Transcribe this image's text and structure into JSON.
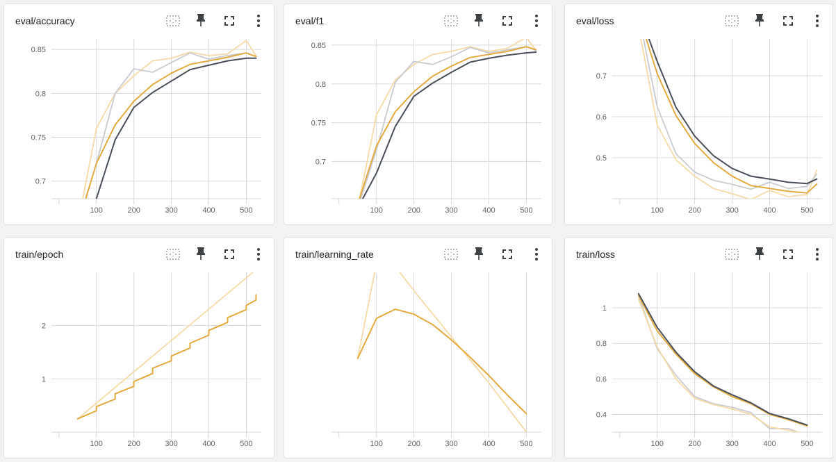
{
  "toolbar_icons": [
    "fit-data-icon",
    "pin-icon",
    "fullscreen-icon",
    "more-vert-icon"
  ],
  "colors": {
    "dark": "#474e5a",
    "orange": "#e5aa3f",
    "light_orange": "#f6dba6",
    "light_grey": "#c9cbd1",
    "grid": "#d9d9d9",
    "tick": "#5f6368"
  },
  "charts": [
    {
      "title": "eval/accuracy",
      "chart_data": {
        "type": "line",
        "xlim": [
          -20,
          540
        ],
        "ylim": [
          0.68,
          0.862
        ],
        "xticks": [
          100,
          200,
          300,
          400,
          500
        ],
        "yticks": [
          {
            "v": 0.7,
            "label": "0.7"
          },
          {
            "v": 0.75,
            "label": "0.75"
          },
          {
            "v": 0.8,
            "label": "0.8"
          },
          {
            "v": 0.85,
            "label": "0.85"
          }
        ],
        "grid": true,
        "series": [
          {
            "color": "light_orange",
            "width": 1.8,
            "x": [
              50,
              100,
              150,
              200,
              250,
              300,
              350,
              400,
              450,
              500,
              526
            ],
            "y": [
              0.65,
              0.76,
              0.8,
              0.82,
              0.837,
              0.84,
              0.847,
              0.843,
              0.845,
              0.86,
              0.843
            ]
          },
          {
            "color": "light_grey",
            "width": 1.8,
            "x": [
              50,
              100,
              150,
              200,
              250,
              300,
              350,
              400,
              450,
              500,
              526
            ],
            "y": [
              0.65,
              0.72,
              0.8,
              0.828,
              0.824,
              0.835,
              0.846,
              0.839,
              0.843,
              0.846,
              0.842
            ]
          },
          {
            "color": "orange",
            "width": 2.0,
            "x": [
              50,
              100,
              150,
              200,
              250,
              300,
              350,
              400,
              450,
              500,
              526
            ],
            "y": [
              0.65,
              0.72,
              0.764,
              0.791,
              0.81,
              0.823,
              0.833,
              0.837,
              0.841,
              0.846,
              0.842
            ]
          },
          {
            "color": "dark",
            "width": 2.0,
            "x": [
              50,
              100,
              150,
              200,
              250,
              300,
              350,
              400,
              450,
              500,
              526
            ],
            "y": [
              0.64,
              0.68,
              0.747,
              0.784,
              0.801,
              0.814,
              0.827,
              0.832,
              0.837,
              0.84,
              0.84
            ]
          }
        ]
      }
    },
    {
      "title": "eval/f1",
      "chart_data": {
        "type": "line",
        "xlim": [
          -20,
          540
        ],
        "ylim": [
          0.652,
          0.858
        ],
        "xticks": [
          100,
          200,
          300,
          400,
          500
        ],
        "yticks": [
          {
            "v": 0.7,
            "label": "0.7"
          },
          {
            "v": 0.75,
            "label": "0.75"
          },
          {
            "v": 0.8,
            "label": "0.8"
          },
          {
            "v": 0.85,
            "label": "0.85"
          }
        ],
        "grid": true,
        "series": [
          {
            "color": "light_orange",
            "width": 1.8,
            "x": [
              50,
              100,
              150,
              200,
              250,
              300,
              350,
              400,
              450,
              500,
              526
            ],
            "y": [
              0.64,
              0.76,
              0.805,
              0.825,
              0.838,
              0.842,
              0.848,
              0.842,
              0.846,
              0.86,
              0.843
            ]
          },
          {
            "color": "light_grey",
            "width": 1.8,
            "x": [
              50,
              100,
              150,
              200,
              250,
              300,
              350,
              400,
              450,
              500,
              526
            ],
            "y": [
              0.64,
              0.715,
              0.802,
              0.829,
              0.825,
              0.835,
              0.847,
              0.84,
              0.844,
              0.848,
              0.843
            ]
          },
          {
            "color": "orange",
            "width": 2.0,
            "x": [
              50,
              100,
              150,
              200,
              250,
              300,
              350,
              400,
              450,
              500,
              526
            ],
            "y": [
              0.645,
              0.72,
              0.764,
              0.79,
              0.81,
              0.823,
              0.834,
              0.838,
              0.842,
              0.848,
              0.844
            ]
          },
          {
            "color": "dark",
            "width": 2.0,
            "x": [
              50,
              100,
              150,
              200,
              250,
              300,
              350,
              400,
              450,
              500,
              526
            ],
            "y": [
              0.64,
              0.685,
              0.745,
              0.784,
              0.801,
              0.815,
              0.828,
              0.833,
              0.837,
              0.84,
              0.841
            ]
          }
        ]
      }
    },
    {
      "title": "eval/loss",
      "chart_data": {
        "type": "line",
        "xlim": [
          -20,
          540
        ],
        "ylim": [
          0.4,
          0.79
        ],
        "xticks": [
          100,
          200,
          300,
          400,
          500
        ],
        "yticks": [
          {
            "v": 0.5,
            "label": "0.5"
          },
          {
            "v": 0.6,
            "label": "0.6"
          },
          {
            "v": 0.7,
            "label": "0.7"
          }
        ],
        "grid": true,
        "series": [
          {
            "color": "light_orange",
            "width": 1.8,
            "x": [
              50,
              100,
              150,
              200,
              250,
              300,
              350,
              400,
              450,
              500,
              526
            ],
            "y": [
              0.82,
              0.58,
              0.495,
              0.455,
              0.425,
              0.412,
              0.398,
              0.42,
              0.405,
              0.41,
              0.47
            ]
          },
          {
            "color": "light_grey",
            "width": 1.8,
            "x": [
              50,
              100,
              150,
              200,
              250,
              300,
              350,
              400,
              450,
              500,
              526
            ],
            "y": [
              0.85,
              0.625,
              0.51,
              0.465,
              0.445,
              0.435,
              0.423,
              0.44,
              0.425,
              0.43,
              0.46
            ]
          },
          {
            "color": "orange",
            "width": 2.0,
            "x": [
              50,
              100,
              150,
              200,
              250,
              300,
              350,
              400,
              450,
              500,
              526
            ],
            "y": [
              0.85,
              0.705,
              0.603,
              0.535,
              0.488,
              0.455,
              0.432,
              0.425,
              0.418,
              0.414,
              0.436
            ]
          },
          {
            "color": "dark",
            "width": 2.0,
            "x": [
              50,
              100,
              150,
              200,
              250,
              300,
              350,
              400,
              450,
              500,
              526
            ],
            "y": [
              0.86,
              0.735,
              0.623,
              0.553,
              0.505,
              0.474,
              0.455,
              0.448,
              0.44,
              0.437,
              0.448
            ]
          }
        ]
      }
    },
    {
      "title": "train/epoch",
      "chart_data": {
        "type": "line",
        "xlim": [
          -20,
          540
        ],
        "ylim": [
          0.0,
          3.0
        ],
        "xticks": [
          100,
          200,
          300,
          400,
          500
        ],
        "yticks": [
          {
            "v": 1,
            "label": "1"
          },
          {
            "v": 2,
            "label": "2"
          }
        ],
        "grid": true,
        "series": [
          {
            "color": "light_orange",
            "width": 1.8,
            "x": [
              50,
              526
            ],
            "y": [
              0.25,
              3.05
            ]
          },
          {
            "color": "orange",
            "width": 2.0,
            "x": [
              50,
              100,
              100,
              150,
              150,
              200,
              200,
              250,
              250,
              300,
              300,
              350,
              350,
              400,
              400,
              450,
              450,
              500,
              500,
              526,
              526
            ],
            "y": [
              0.25,
              0.4,
              0.48,
              0.62,
              0.72,
              0.86,
              0.95,
              1.1,
              1.2,
              1.34,
              1.43,
              1.58,
              1.67,
              1.82,
              1.91,
              2.06,
              2.15,
              2.3,
              2.38,
              2.48,
              2.58
            ]
          }
        ]
      }
    },
    {
      "title": "train/learning_rate",
      "chart_data": {
        "type": "line",
        "xlim": [
          -20,
          540
        ],
        "ylim": [
          0.0,
          2.6
        ],
        "xticks": [
          100,
          200,
          300,
          400,
          500
        ],
        "yticks": [],
        "grid": true,
        "series": [
          {
            "color": "light_orange",
            "width": 1.8,
            "x": [
              50,
              100,
              150,
              200,
              300,
              400,
              500
            ],
            "y": [
              1.2,
              2.75,
              2.7,
              2.3,
              1.55,
              0.8,
              0.0
            ]
          },
          {
            "color": "orange",
            "width": 2.0,
            "x": [
              50,
              100,
              150,
              200,
              250,
              300,
              350,
              400,
              450,
              500
            ],
            "y": [
              1.2,
              1.85,
              2.0,
              1.92,
              1.75,
              1.5,
              1.22,
              0.92,
              0.6,
              0.3
            ]
          }
        ]
      }
    },
    {
      "title": "train/loss",
      "chart_data": {
        "type": "line",
        "xlim": [
          -20,
          540
        ],
        "ylim": [
          0.3,
          1.2
        ],
        "xticks": [
          100,
          200,
          300,
          400,
          500
        ],
        "yticks": [
          {
            "v": 0.4,
            "label": "0.4"
          },
          {
            "v": 0.6,
            "label": "0.6"
          },
          {
            "v": 0.8,
            "label": "0.8"
          },
          {
            "v": 1.0,
            "label": "1"
          }
        ],
        "grid": true,
        "series": [
          {
            "color": "light_grey",
            "width": 1.8,
            "x": [
              50,
              100,
              150,
              200,
              250,
              300,
              350,
              400,
              450,
              500
            ],
            "y": [
              1.07,
              0.77,
              0.62,
              0.5,
              0.46,
              0.44,
              0.41,
              0.32,
              0.32,
              0.28
            ]
          },
          {
            "color": "light_orange",
            "width": 1.8,
            "x": [
              50,
              100,
              150,
              200,
              250,
              300,
              350,
              400,
              450,
              500
            ],
            "y": [
              1.05,
              0.78,
              0.6,
              0.49,
              0.455,
              0.43,
              0.4,
              0.33,
              0.31,
              0.29
            ]
          },
          {
            "color": "orange",
            "width": 2.0,
            "x": [
              50,
              100,
              150,
              200,
              250,
              300,
              350,
              400,
              450,
              500
            ],
            "y": [
              1.07,
              0.87,
              0.74,
              0.63,
              0.555,
              0.5,
              0.46,
              0.4,
              0.37,
              0.335
            ]
          },
          {
            "color": "dark",
            "width": 2.0,
            "x": [
              50,
              100,
              150,
              200,
              250,
              300,
              350,
              400,
              450,
              500
            ],
            "y": [
              1.08,
              0.89,
              0.75,
              0.64,
              0.56,
              0.51,
              0.465,
              0.405,
              0.375,
              0.34
            ]
          }
        ]
      }
    }
  ]
}
